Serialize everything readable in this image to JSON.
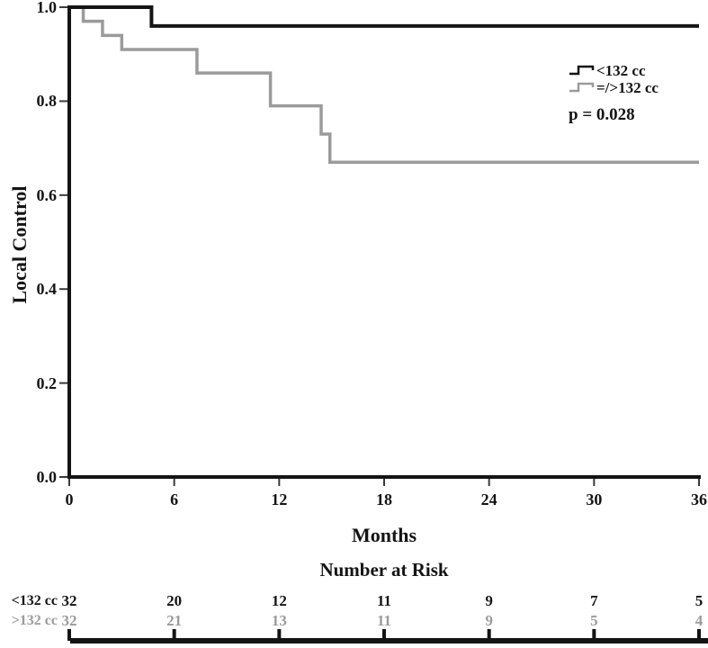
{
  "figure": {
    "background": "#ffffff",
    "black": "#141414",
    "gray": "#9b9b9b",
    "tick_color": "#3a3a3a"
  },
  "chart_data": {
    "type": "line",
    "subtype": "kaplan-meier-step",
    "title": "",
    "xlabel": "Months",
    "ylabel": "Local Control",
    "xlim": [
      0,
      36
    ],
    "ylim": [
      0.0,
      1.0
    ],
    "xticks": [
      "0",
      "6",
      "12",
      "18",
      "24",
      "30",
      "36"
    ],
    "yticks": [
      "1.0",
      "0.8",
      "0.6",
      "0.4",
      "0.2",
      "0.0"
    ],
    "grid": false,
    "legend_position": "upper right",
    "annotation": "p = 0.028",
    "series": [
      {
        "name": "<132 cc",
        "color": "#141414",
        "line_width": 4,
        "start_value": 1.0,
        "drops": [
          [
            4.7,
            0.96
          ]
        ],
        "end_x": 36,
        "end_value": 0.96
      },
      {
        "name": "=/>132 cc",
        "color": "#9b9b9b",
        "line_width": 3.5,
        "start_value": 1.0,
        "drops": [
          [
            0.8,
            0.97
          ],
          [
            1.9,
            0.94
          ],
          [
            3.0,
            0.91
          ],
          [
            7.3,
            0.86
          ],
          [
            11.5,
            0.79
          ],
          [
            14.4,
            0.73
          ],
          [
            14.9,
            0.67
          ]
        ],
        "end_x": 36,
        "end_value": 0.67
      }
    ]
  },
  "legend": {
    "items": [
      {
        "label": "<132 cc",
        "color": "#141414"
      },
      {
        "label": "=/>132 cc",
        "color": "#9b9b9b"
      }
    ],
    "pvalue": "p = 0.028"
  },
  "risk_table": {
    "title": "Number at Risk",
    "columns_months": [
      0,
      6,
      12,
      18,
      24,
      30,
      36
    ],
    "rows": [
      {
        "label": "<132 cc",
        "color": "#141414",
        "values": [
          "32",
          "20",
          "12",
          "11",
          "9",
          "7",
          "5"
        ]
      },
      {
        "label": ">132 cc",
        "color": "#9b9b9b",
        "values": [
          "32",
          "21",
          "13",
          "11",
          "9",
          "5",
          "4"
        ]
      }
    ]
  }
}
